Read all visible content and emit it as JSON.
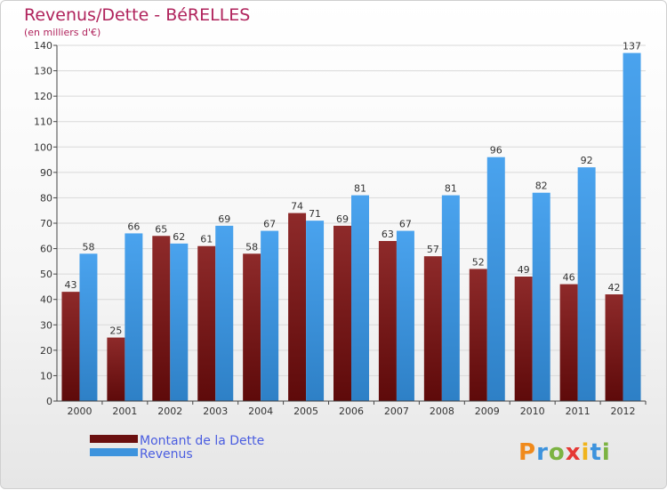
{
  "chart_data": {
    "type": "bar",
    "title": "Revenus/Dette - BéRELLES",
    "subtitle": "(en milliers d'€)",
    "xlabel": "",
    "ylabel": "",
    "ylim": [
      0,
      140
    ],
    "ytick_step": 10,
    "grid": true,
    "categories": [
      "2000",
      "2001",
      "2002",
      "2003",
      "2004",
      "2005",
      "2006",
      "2007",
      "2008",
      "2009",
      "2010",
      "2011",
      "2012"
    ],
    "series": [
      {
        "name": "Montant de la Dette",
        "color": "#7a1a1a",
        "values": [
          43,
          25,
          65,
          61,
          58,
          74,
          69,
          63,
          57,
          52,
          49,
          46,
          42
        ]
      },
      {
        "name": "Revenus",
        "color": "#3d93dd",
        "values": [
          58,
          66,
          62,
          69,
          67,
          71,
          81,
          67,
          81,
          96,
          82,
          92,
          137
        ]
      }
    ],
    "legend_position": "bottom-left"
  },
  "logo": {
    "text": "Proxiti"
  }
}
